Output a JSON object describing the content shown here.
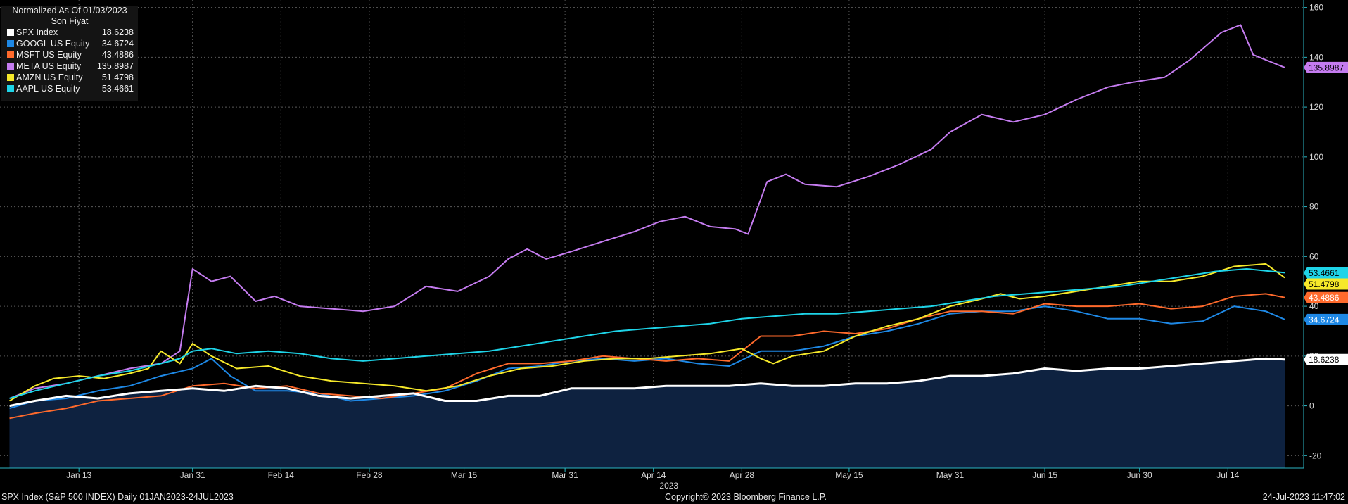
{
  "chart_data": {
    "type": "area",
    "legend_title": "Normalized As Of 01/03/2023",
    "legend_subtitle": "Son Fiyat",
    "legend_position": "top-left",
    "grid": true,
    "ylim": [
      -25,
      163
    ],
    "y_ticks": [
      -20,
      0,
      20,
      40,
      60,
      80,
      100,
      120,
      140,
      160
    ],
    "y_tick_labels": [
      "-20",
      "0",
      "20",
      "40",
      "60",
      "80",
      "100",
      "120",
      "140",
      "160"
    ],
    "x_ticks": [
      {
        "label": "Jan 13",
        "day": 12
      },
      {
        "label": "Jan 31",
        "day": 30
      },
      {
        "label": "Feb 14",
        "day": 44
      },
      {
        "label": "Feb 28",
        "day": 58
      },
      {
        "label": "Mar 15",
        "day": 73
      },
      {
        "label": "Mar 31",
        "day": 89
      },
      {
        "label": "Apr 14",
        "day": 103
      },
      {
        "label": "Apr 28",
        "day": 117
      },
      {
        "label": "May 15",
        "day": 134
      },
      {
        "label": "May 31",
        "day": 150
      },
      {
        "label": "Jun 15",
        "day": 165
      },
      {
        "label": "Jun 30",
        "day": 180
      },
      {
        "label": "Jul 14",
        "day": 194
      }
    ],
    "x_range_days": [
      -0.5,
      206
    ],
    "year_label": "2023",
    "series": [
      {
        "name": "SPX Index",
        "last": "18.6238",
        "color": "#ffffff",
        "fill": "#0e2240",
        "width": 3,
        "points": [
          [
            1,
            0
          ],
          [
            5,
            2
          ],
          [
            10,
            4
          ],
          [
            15,
            3
          ],
          [
            20,
            5
          ],
          [
            25,
            6
          ],
          [
            30,
            7
          ],
          [
            35,
            6
          ],
          [
            40,
            8
          ],
          [
            45,
            7
          ],
          [
            50,
            4
          ],
          [
            55,
            3
          ],
          [
            60,
            4
          ],
          [
            65,
            5
          ],
          [
            70,
            2
          ],
          [
            75,
            2
          ],
          [
            80,
            4
          ],
          [
            85,
            4
          ],
          [
            90,
            7
          ],
          [
            95,
            7
          ],
          [
            100,
            7
          ],
          [
            105,
            8
          ],
          [
            110,
            8
          ],
          [
            115,
            8
          ],
          [
            120,
            9
          ],
          [
            125,
            8
          ],
          [
            130,
            8
          ],
          [
            135,
            9
          ],
          [
            140,
            9
          ],
          [
            145,
            10
          ],
          [
            150,
            12
          ],
          [
            155,
            12
          ],
          [
            160,
            13
          ],
          [
            165,
            15
          ],
          [
            170,
            14
          ],
          [
            175,
            15
          ],
          [
            180,
            15
          ],
          [
            185,
            16
          ],
          [
            190,
            17
          ],
          [
            195,
            18
          ],
          [
            200,
            19
          ],
          [
            203,
            18.6238
          ]
        ]
      },
      {
        "name": "GOOGL US Equity",
        "last": "34.6724",
        "color": "#1e88e5",
        "width": 2,
        "points": [
          [
            1,
            -1
          ],
          [
            5,
            2
          ],
          [
            10,
            3
          ],
          [
            15,
            6
          ],
          [
            20,
            8
          ],
          [
            25,
            12
          ],
          [
            30,
            15
          ],
          [
            33,
            19
          ],
          [
            36,
            12
          ],
          [
            40,
            6
          ],
          [
            45,
            6
          ],
          [
            50,
            5
          ],
          [
            55,
            2
          ],
          [
            60,
            3
          ],
          [
            65,
            4
          ],
          [
            70,
            6
          ],
          [
            75,
            10
          ],
          [
            80,
            15
          ],
          [
            85,
            16
          ],
          [
            90,
            18
          ],
          [
            95,
            19
          ],
          [
            100,
            18
          ],
          [
            105,
            19
          ],
          [
            110,
            17
          ],
          [
            115,
            16
          ],
          [
            120,
            22
          ],
          [
            125,
            22
          ],
          [
            130,
            24
          ],
          [
            135,
            28
          ],
          [
            140,
            30
          ],
          [
            145,
            33
          ],
          [
            150,
            37
          ],
          [
            155,
            38
          ],
          [
            160,
            38
          ],
          [
            165,
            40
          ],
          [
            170,
            38
          ],
          [
            175,
            35
          ],
          [
            180,
            35
          ],
          [
            185,
            33
          ],
          [
            190,
            34
          ],
          [
            195,
            40
          ],
          [
            200,
            38
          ],
          [
            203,
            34.6724
          ]
        ]
      },
      {
        "name": "MSFT US Equity",
        "last": "43.4886",
        "color": "#ff6a2c",
        "width": 2,
        "points": [
          [
            1,
            -5
          ],
          [
            5,
            -3
          ],
          [
            10,
            -1
          ],
          [
            15,
            2
          ],
          [
            20,
            3
          ],
          [
            25,
            4
          ],
          [
            30,
            8
          ],
          [
            35,
            9
          ],
          [
            40,
            7
          ],
          [
            45,
            8
          ],
          [
            50,
            5
          ],
          [
            55,
            4
          ],
          [
            60,
            3
          ],
          [
            65,
            5
          ],
          [
            70,
            7
          ],
          [
            75,
            13
          ],
          [
            80,
            17
          ],
          [
            85,
            17
          ],
          [
            90,
            18
          ],
          [
            95,
            20
          ],
          [
            100,
            19
          ],
          [
            105,
            18
          ],
          [
            110,
            19
          ],
          [
            115,
            18
          ],
          [
            120,
            28
          ],
          [
            125,
            28
          ],
          [
            130,
            30
          ],
          [
            135,
            29
          ],
          [
            140,
            31
          ],
          [
            145,
            35
          ],
          [
            150,
            38
          ],
          [
            155,
            38
          ],
          [
            160,
            37
          ],
          [
            165,
            41
          ],
          [
            170,
            40
          ],
          [
            175,
            40
          ],
          [
            180,
            41
          ],
          [
            185,
            39
          ],
          [
            190,
            40
          ],
          [
            195,
            44
          ],
          [
            200,
            45
          ],
          [
            203,
            43.4886
          ]
        ]
      },
      {
        "name": "META US Equity",
        "last": "135.8987",
        "color": "#c57cf0",
        "width": 2,
        "points": [
          [
            1,
            3
          ],
          [
            5,
            7
          ],
          [
            10,
            9
          ],
          [
            15,
            12
          ],
          [
            20,
            15
          ],
          [
            25,
            17
          ],
          [
            28,
            22
          ],
          [
            30,
            55
          ],
          [
            33,
            50
          ],
          [
            36,
            52
          ],
          [
            40,
            42
          ],
          [
            43,
            44
          ],
          [
            47,
            40
          ],
          [
            52,
            39
          ],
          [
            57,
            38
          ],
          [
            62,
            40
          ],
          [
            67,
            48
          ],
          [
            72,
            46
          ],
          [
            77,
            52
          ],
          [
            80,
            59
          ],
          [
            83,
            63
          ],
          [
            86,
            59
          ],
          [
            90,
            62
          ],
          [
            95,
            66
          ],
          [
            100,
            70
          ],
          [
            104,
            74
          ],
          [
            108,
            76
          ],
          [
            112,
            72
          ],
          [
            116,
            71
          ],
          [
            118,
            69
          ],
          [
            121,
            90
          ],
          [
            124,
            93
          ],
          [
            127,
            89
          ],
          [
            132,
            88
          ],
          [
            137,
            92
          ],
          [
            142,
            97
          ],
          [
            147,
            103
          ],
          [
            150,
            110
          ],
          [
            155,
            117
          ],
          [
            160,
            114
          ],
          [
            165,
            117
          ],
          [
            170,
            123
          ],
          [
            175,
            128
          ],
          [
            179,
            130
          ],
          [
            184,
            132
          ],
          [
            188,
            139
          ],
          [
            193,
            150
          ],
          [
            196,
            153
          ],
          [
            198,
            141
          ],
          [
            203,
            135.8987
          ]
        ]
      },
      {
        "name": "AMZN US Equity",
        "last": "51.4798",
        "color": "#f6e92a",
        "width": 2,
        "points": [
          [
            1,
            2
          ],
          [
            5,
            8
          ],
          [
            8,
            11
          ],
          [
            12,
            12
          ],
          [
            16,
            11
          ],
          [
            20,
            13
          ],
          [
            23,
            15
          ],
          [
            25,
            22
          ],
          [
            28,
            17
          ],
          [
            30,
            25
          ],
          [
            33,
            20
          ],
          [
            37,
            15
          ],
          [
            42,
            16
          ],
          [
            47,
            12
          ],
          [
            52,
            10
          ],
          [
            57,
            9
          ],
          [
            62,
            8
          ],
          [
            67,
            6
          ],
          [
            72,
            8
          ],
          [
            77,
            12
          ],
          [
            82,
            15
          ],
          [
            87,
            16
          ],
          [
            92,
            18
          ],
          [
            97,
            19
          ],
          [
            102,
            19
          ],
          [
            107,
            20
          ],
          [
            112,
            21
          ],
          [
            117,
            23
          ],
          [
            120,
            19
          ],
          [
            122,
            17
          ],
          [
            125,
            20
          ],
          [
            130,
            22
          ],
          [
            135,
            28
          ],
          [
            140,
            32
          ],
          [
            145,
            35
          ],
          [
            150,
            40
          ],
          [
            155,
            43
          ],
          [
            158,
            45
          ],
          [
            161,
            43
          ],
          [
            165,
            44
          ],
          [
            170,
            46
          ],
          [
            175,
            48
          ],
          [
            180,
            50
          ],
          [
            185,
            50
          ],
          [
            190,
            52
          ],
          [
            195,
            56
          ],
          [
            200,
            57
          ],
          [
            203,
            51.4798
          ]
        ]
      },
      {
        "name": "AAPL US Equity",
        "last": "53.4661",
        "color": "#1ed4e8",
        "width": 2,
        "points": [
          [
            1,
            3
          ],
          [
            5,
            6
          ],
          [
            10,
            9
          ],
          [
            15,
            12
          ],
          [
            20,
            14
          ],
          [
            25,
            17
          ],
          [
            28,
            19
          ],
          [
            30,
            22
          ],
          [
            33,
            23
          ],
          [
            37,
            21
          ],
          [
            42,
            22
          ],
          [
            47,
            21
          ],
          [
            52,
            19
          ],
          [
            57,
            18
          ],
          [
            62,
            19
          ],
          [
            67,
            20
          ],
          [
            72,
            21
          ],
          [
            77,
            22
          ],
          [
            82,
            24
          ],
          [
            87,
            26
          ],
          [
            92,
            28
          ],
          [
            97,
            30
          ],
          [
            102,
            31
          ],
          [
            107,
            32
          ],
          [
            112,
            33
          ],
          [
            117,
            35
          ],
          [
            122,
            36
          ],
          [
            127,
            37
          ],
          [
            132,
            37
          ],
          [
            137,
            38
          ],
          [
            142,
            39
          ],
          [
            147,
            40
          ],
          [
            152,
            42
          ],
          [
            157,
            44
          ],
          [
            162,
            45
          ],
          [
            167,
            46
          ],
          [
            172,
            47
          ],
          [
            177,
            48
          ],
          [
            182,
            50
          ],
          [
            187,
            52
          ],
          [
            192,
            54
          ],
          [
            197,
            55
          ],
          [
            203,
            53.4661
          ]
        ]
      }
    ]
  },
  "footer": {
    "left": "SPX Index (S&P 500 INDEX)  Daily 01JAN2023-24JUL2023",
    "center": "Copyright© 2023 Bloomberg Finance L.P.",
    "right": "24-Jul-2023 11:47:02"
  }
}
